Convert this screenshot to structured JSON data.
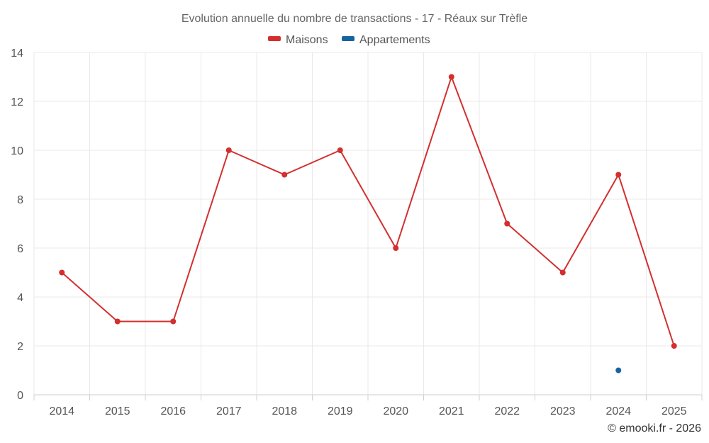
{
  "chart_data": {
    "type": "line",
    "title": "Evolution annuelle du nombre de transactions - 17 - Réaux sur Trèfle",
    "categories": [
      "2014",
      "2015",
      "2016",
      "2017",
      "2018",
      "2019",
      "2020",
      "2021",
      "2022",
      "2023",
      "2024",
      "2025"
    ],
    "series": [
      {
        "name": "Maisons",
        "color": "#d32f2f",
        "values": [
          5,
          3,
          3,
          10,
          9,
          10,
          6,
          13,
          7,
          5,
          9,
          2
        ]
      },
      {
        "name": "Appartements",
        "color": "#1565a0",
        "values": [
          null,
          null,
          null,
          null,
          null,
          null,
          null,
          null,
          null,
          null,
          1,
          null
        ]
      }
    ],
    "xlabel": "",
    "ylabel": "",
    "ylim": [
      0,
      14
    ],
    "yticks": [
      "0",
      "2",
      "4",
      "6",
      "8",
      "10",
      "12",
      "14"
    ],
    "grid": true,
    "legend_position": "top-center"
  },
  "credit": "© emooki.fr - 2026"
}
